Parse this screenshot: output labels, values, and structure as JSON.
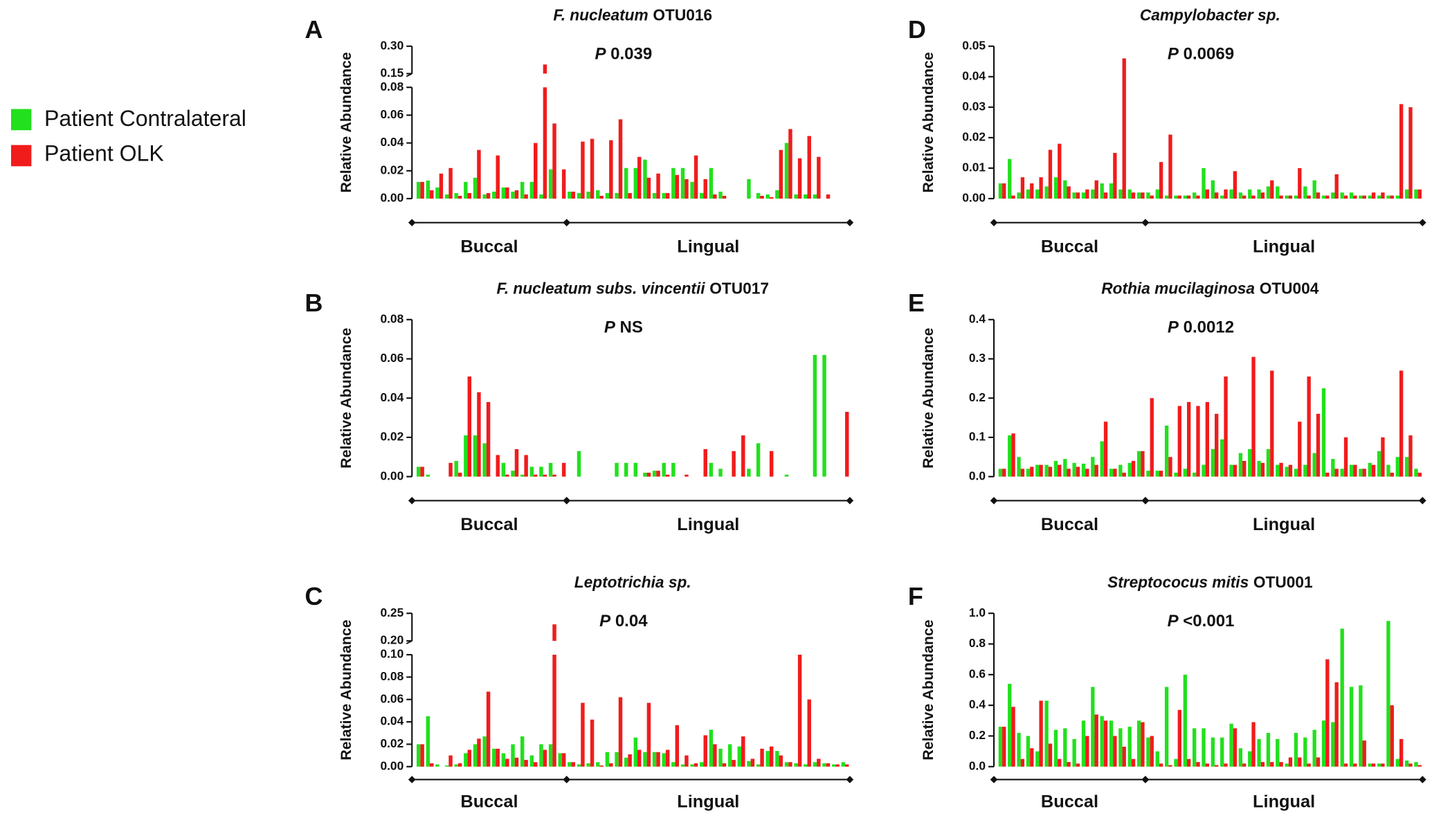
{
  "legend": [
    {
      "name": "Patient Contralateral",
      "color": "#22e01e"
    },
    {
      "name": "Patient OLK",
      "color": "#f01c1c"
    }
  ],
  "chart_data": [
    {
      "type": "bar",
      "panel": "A",
      "species": "F. nucleatum",
      "strain": "OTU016",
      "annotation": {
        "symbol": "P",
        "value": "0.039"
      },
      "ylabel": "Relative Abundance",
      "ylim": [
        0,
        0.3
      ],
      "ybreak": [
        0.08,
        0.15
      ],
      "yticks": [
        {
          "value": 0,
          "label": "0.00"
        },
        0.02,
        0.04,
        0.06,
        0.08,
        0.15,
        {
          "value": 0.3,
          "label": "0.30"
        }
      ],
      "categories": [
        null,
        null,
        null,
        null,
        null,
        null,
        null,
        null,
        null,
        null,
        null,
        null,
        null,
        null,
        null,
        null,
        null,
        null,
        null,
        null,
        null,
        null,
        null,
        null,
        null,
        null,
        null,
        null,
        null,
        null,
        null,
        null,
        null,
        null,
        null,
        null,
        null,
        null,
        null,
        null,
        null,
        null,
        null,
        null,
        null,
        null
      ],
      "groups": [
        {
          "name": "Buccal",
          "start": 0,
          "end": 15
        },
        {
          "name": "Lingual",
          "start": 16,
          "end": 45
        }
      ],
      "series": [
        {
          "color": "#22e01e",
          "values": [
            0.012,
            0.013,
            0.008,
            0.003,
            0.004,
            0.012,
            0.015,
            0.003,
            0.005,
            0.008,
            0.005,
            0.012,
            0.012,
            0.003,
            0.021,
            0,
            0.005,
            0.004,
            0.005,
            0.006,
            0.004,
            0.004,
            0.022,
            0.022,
            0.028,
            0.004,
            0.004,
            0.022,
            0.022,
            0.012,
            0.004,
            0.022,
            0.005,
            0,
            0,
            0.014,
            0.004,
            0.003,
            0.006,
            0.04,
            0.003,
            0.003,
            0.003,
            0,
            0,
            0
          ]
        },
        {
          "color": "#f01c1c",
          "values": [
            0.012,
            0.006,
            0.018,
            0.022,
            0.002,
            0.004,
            0.035,
            0.004,
            0.031,
            0.008,
            0.006,
            0.003,
            0.04,
            0.2,
            0.054,
            0.021,
            0.005,
            0.041,
            0.043,
            0.002,
            0.042,
            0.057,
            0.004,
            0.03,
            0.015,
            0.018,
            0.004,
            0.017,
            0.014,
            0.031,
            0.014,
            0.003,
            0.002,
            0,
            0,
            0,
            0.002,
            0.001,
            0.035,
            0.05,
            0.029,
            0.045,
            0.03,
            0.003,
            0,
            0
          ]
        }
      ]
    },
    {
      "type": "bar",
      "panel": "B",
      "species": "F. nucleatum subs. vincentii",
      "strain": "OTU017",
      "annotation": {
        "symbol": "P",
        "value": "NS"
      },
      "ylabel": "Relative Abundance",
      "ylim": [
        0,
        0.08
      ],
      "yticks": [
        {
          "value": 0,
          "label": "0.00"
        },
        0.02,
        0.04,
        0.06,
        0.08
      ],
      "categories": [
        null,
        null,
        null,
        null,
        null,
        null,
        null,
        null,
        null,
        null,
        null,
        null,
        null,
        null,
        null,
        null,
        null,
        null,
        null,
        null,
        null,
        null,
        null,
        null,
        null,
        null,
        null,
        null,
        null,
        null,
        null,
        null,
        null,
        null,
        null,
        null,
        null,
        null,
        null,
        null,
        null,
        null,
        null,
        null,
        null,
        null
      ],
      "groups": [
        {
          "name": "Buccal",
          "start": 0,
          "end": 15
        },
        {
          "name": "Lingual",
          "start": 16,
          "end": 45
        }
      ],
      "series": [
        {
          "color": "#22e01e",
          "values": [
            0.005,
            0.001,
            0,
            0,
            0.008,
            0.021,
            0.021,
            0.017,
            0,
            0.007,
            0.003,
            0.001,
            0.005,
            0.005,
            0.007,
            0,
            0,
            0.013,
            0,
            0,
            0,
            0.007,
            0.007,
            0.007,
            0.002,
            0.003,
            0.007,
            0.007,
            0,
            0,
            0,
            0.007,
            0.004,
            0,
            0,
            0.004,
            0.017,
            0,
            0,
            0.001,
            0,
            0,
            0.062,
            0.062,
            0,
            0
          ]
        },
        {
          "color": "#f01c1c",
          "values": [
            0.005,
            0,
            0,
            0.007,
            0.002,
            0.051,
            0.043,
            0.038,
            0.011,
            0.001,
            0.014,
            0.011,
            0.001,
            0.001,
            0.001,
            0.007,
            0,
            0,
            0,
            0,
            0,
            0,
            0,
            0,
            0.002,
            0.003,
            0.001,
            0,
            0.001,
            0,
            0.014,
            0,
            0,
            0.013,
            0.021,
            0,
            0,
            0.013,
            0,
            0,
            0,
            0,
            0,
            0,
            0,
            0.033
          ]
        }
      ]
    },
    {
      "type": "bar",
      "panel": "C",
      "species": "Leptotrichia sp.",
      "annotation": {
        "symbol": "P",
        "value": "0.04"
      },
      "ylabel": "Relative Abundance",
      "ylim": [
        0,
        0.25
      ],
      "ybreak": [
        0.1,
        0.2
      ],
      "yticks": [
        {
          "value": 0,
          "label": "0.00"
        },
        0.02,
        0.04,
        0.06,
        0.08,
        {
          "value": 0.1,
          "label": "0.10"
        },
        {
          "value": 0.2,
          "label": "0.20"
        },
        0.25
      ],
      "categories": [
        null,
        null,
        null,
        null,
        null,
        null,
        null,
        null,
        null,
        null,
        null,
        null,
        null,
        null,
        null,
        null,
        null,
        null,
        null,
        null,
        null,
        null,
        null,
        null,
        null,
        null,
        null,
        null,
        null,
        null,
        null,
        null,
        null,
        null,
        null,
        null,
        null,
        null,
        null,
        null,
        null,
        null,
        null,
        null,
        null,
        null
      ],
      "groups": [
        {
          "name": "Buccal",
          "start": 0,
          "end": 15
        },
        {
          "name": "Lingual",
          "start": 16,
          "end": 45
        }
      ],
      "series": [
        {
          "color": "#22e01e",
          "values": [
            0.02,
            0.045,
            0.002,
            0.001,
            0.002,
            0.012,
            0.02,
            0.027,
            0.016,
            0.012,
            0.02,
            0.027,
            0.01,
            0.02,
            0.02,
            0.012,
            0.004,
            0.002,
            0.003,
            0.004,
            0.013,
            0.013,
            0.008,
            0.026,
            0.013,
            0.013,
            0.012,
            0.004,
            0.002,
            0.002,
            0.004,
            0.033,
            0.016,
            0.02,
            0.018,
            0.005,
            0.002,
            0.014,
            0.014,
            0.004,
            0.003,
            0.002,
            0.004,
            0.003,
            0.002,
            0.004
          ]
        },
        {
          "color": "#f01c1c",
          "values": [
            0.02,
            0.003,
            0,
            0.01,
            0.003,
            0.015,
            0.025,
            0.067,
            0.016,
            0.007,
            0.008,
            0.006,
            0.004,
            0.015,
            0.23,
            0.012,
            0.004,
            0.057,
            0.042,
            0.001,
            0.003,
            0.062,
            0.011,
            0.015,
            0.057,
            0.013,
            0.015,
            0.037,
            0.01,
            0.003,
            0.028,
            0.02,
            0.003,
            0.006,
            0.027,
            0.007,
            0.016,
            0.018,
            0.01,
            0.004,
            0.1,
            0.06,
            0.007,
            0.003,
            0.002,
            0.002
          ]
        }
      ]
    },
    {
      "type": "bar",
      "panel": "D",
      "species": "Campylobacter sp.",
      "annotation": {
        "symbol": "P",
        "value": "0.0069"
      },
      "ylabel": "Relative Abundance",
      "ylim": [
        0,
        0.05
      ],
      "yticks": [
        {
          "value": 0,
          "label": "0.00"
        },
        0.01,
        0.02,
        0.03,
        0.04,
        0.05
      ],
      "categories": [
        null,
        null,
        null,
        null,
        null,
        null,
        null,
        null,
        null,
        null,
        null,
        null,
        null,
        null,
        null,
        null,
        null,
        null,
        null,
        null,
        null,
        null,
        null,
        null,
        null,
        null,
        null,
        null,
        null,
        null,
        null,
        null,
        null,
        null,
        null,
        null,
        null,
        null,
        null,
        null,
        null,
        null,
        null,
        null,
        null,
        null
      ],
      "groups": [
        {
          "name": "Buccal",
          "start": 0,
          "end": 15
        },
        {
          "name": "Lingual",
          "start": 16,
          "end": 45
        }
      ],
      "series": [
        {
          "color": "#22e01e",
          "values": [
            0.005,
            0.013,
            0.002,
            0.003,
            0.003,
            0.004,
            0.007,
            0.006,
            0.002,
            0.002,
            0.003,
            0.005,
            0.005,
            0.003,
            0.003,
            0.002,
            0.002,
            0.003,
            0.001,
            0.001,
            0.001,
            0.002,
            0.01,
            0.006,
            0.001,
            0.003,
            0.002,
            0.003,
            0.003,
            0.004,
            0.004,
            0.001,
            0.001,
            0.004,
            0.006,
            0.001,
            0.002,
            0.002,
            0.002,
            0.001,
            0.001,
            0.001,
            0.001,
            0.001,
            0.003,
            0.003
          ]
        },
        {
          "color": "#f01c1c",
          "values": [
            0.005,
            0.001,
            0.007,
            0.005,
            0.007,
            0.016,
            0.018,
            0.004,
            0.002,
            0.003,
            0.006,
            0.002,
            0.015,
            0.046,
            0.002,
            0.002,
            0.001,
            0.012,
            0.021,
            0.001,
            0.001,
            0.001,
            0.003,
            0.002,
            0.003,
            0.009,
            0.001,
            0.001,
            0.002,
            0.006,
            0.001,
            0.001,
            0.01,
            0.001,
            0.002,
            0.001,
            0.008,
            0.001,
            0.001,
            0.001,
            0.002,
            0.002,
            0.001,
            0.031,
            0.03,
            0.003
          ]
        }
      ]
    },
    {
      "type": "bar",
      "panel": "E",
      "species": "Rothia mucilaginosa",
      "strain": "OTU004",
      "annotation": {
        "symbol": "P",
        "value": "0.0012"
      },
      "ylabel": "Relative Abundance",
      "ylim": [
        0,
        0.4
      ],
      "yticks": [
        {
          "value": 0,
          "label": "0.0"
        },
        0.1,
        0.2,
        0.3,
        0.4
      ],
      "categories": [
        null,
        null,
        null,
        null,
        null,
        null,
        null,
        null,
        null,
        null,
        null,
        null,
        null,
        null,
        null,
        null,
        null,
        null,
        null,
        null,
        null,
        null,
        null,
        null,
        null,
        null,
        null,
        null,
        null,
        null,
        null,
        null,
        null,
        null,
        null,
        null,
        null,
        null,
        null,
        null,
        null,
        null,
        null,
        null,
        null,
        null
      ],
      "groups": [
        {
          "name": "Buccal",
          "start": 0,
          "end": 15
        },
        {
          "name": "Lingual",
          "start": 16,
          "end": 45
        }
      ],
      "series": [
        {
          "color": "#22e01e",
          "values": [
            0.02,
            0.105,
            0.05,
            0.02,
            0.03,
            0.03,
            0.04,
            0.045,
            0.035,
            0.033,
            0.05,
            0.09,
            0.02,
            0.03,
            0.035,
            0.065,
            0.015,
            0.015,
            0.13,
            0.01,
            0.02,
            0.01,
            0.03,
            0.07,
            0.095,
            0.03,
            0.06,
            0.07,
            0.04,
            0.07,
            0.03,
            0.025,
            0.02,
            0.03,
            0.06,
            0.225,
            0.045,
            0.02,
            0.03,
            0.02,
            0.035,
            0.065,
            0.03,
            0.05,
            0.05,
            0.02
          ]
        },
        {
          "color": "#f01c1c",
          "values": [
            0.02,
            0.11,
            0.02,
            0.025,
            0.03,
            0.025,
            0.03,
            0.02,
            0.025,
            0.02,
            0.03,
            0.14,
            0.02,
            0.01,
            0.04,
            0.065,
            0.2,
            0.015,
            0.05,
            0.18,
            0.19,
            0.18,
            0.19,
            0.16,
            0.255,
            0.03,
            0.04,
            0.305,
            0.035,
            0.27,
            0.035,
            0.03,
            0.14,
            0.255,
            0.16,
            0.01,
            0.02,
            0.1,
            0.03,
            0.02,
            0.03,
            0.1,
            0.01,
            0.27,
            0.105,
            0.01
          ]
        }
      ]
    },
    {
      "type": "bar",
      "panel": "F",
      "species": "Streptococus mitis",
      "strain": "OTU001",
      "annotation": {
        "symbol": "P",
        "value": "<0.001"
      },
      "ylabel": "Relative Abundance",
      "ylim": [
        0,
        1
      ],
      "yticks": [
        {
          "value": 0,
          "label": "0.0"
        },
        0.2,
        0.4,
        0.6,
        0.8,
        {
          "value": 1,
          "label": "1.0"
        }
      ],
      "categories": [
        null,
        null,
        null,
        null,
        null,
        null,
        null,
        null,
        null,
        null,
        null,
        null,
        null,
        null,
        null,
        null,
        null,
        null,
        null,
        null,
        null,
        null,
        null,
        null,
        null,
        null,
        null,
        null,
        null,
        null,
        null,
        null,
        null,
        null,
        null,
        null,
        null,
        null,
        null,
        null,
        null,
        null,
        null,
        null,
        null,
        null
      ],
      "groups": [
        {
          "name": "Buccal",
          "start": 0,
          "end": 15
        },
        {
          "name": "Lingual",
          "start": 16,
          "end": 45
        }
      ],
      "series": [
        {
          "color": "#22e01e",
          "values": [
            0.26,
            0.54,
            0.22,
            0.2,
            0.1,
            0.43,
            0.24,
            0.25,
            0.18,
            0.3,
            0.52,
            0.33,
            0.3,
            0.25,
            0.26,
            0.3,
            0.19,
            0.1,
            0.52,
            0.05,
            0.6,
            0.25,
            0.25,
            0.19,
            0.19,
            0.28,
            0.12,
            0.1,
            0.18,
            0.22,
            0.18,
            0.02,
            0.22,
            0.19,
            0.24,
            0.3,
            0.29,
            0.9,
            0.52,
            0.53,
            0.02,
            0.02,
            0.95,
            0.05,
            0.04,
            0.03
          ]
        },
        {
          "color": "#f01c1c",
          "values": [
            0.26,
            0.39,
            0.05,
            0.12,
            0.43,
            0.15,
            0.05,
            0.03,
            0.02,
            0.2,
            0.34,
            0.3,
            0.2,
            0.13,
            0.05,
            0.29,
            0.2,
            0.02,
            0.01,
            0.37,
            0.05,
            0.03,
            0.02,
            0.01,
            0.02,
            0.25,
            0.02,
            0.29,
            0.03,
            0.03,
            0.03,
            0.06,
            0.06,
            0.02,
            0.06,
            0.7,
            0.55,
            0.02,
            0.02,
            0.17,
            0.02,
            0.02,
            0.4,
            0.18,
            0.02,
            0.01
          ]
        }
      ]
    }
  ]
}
